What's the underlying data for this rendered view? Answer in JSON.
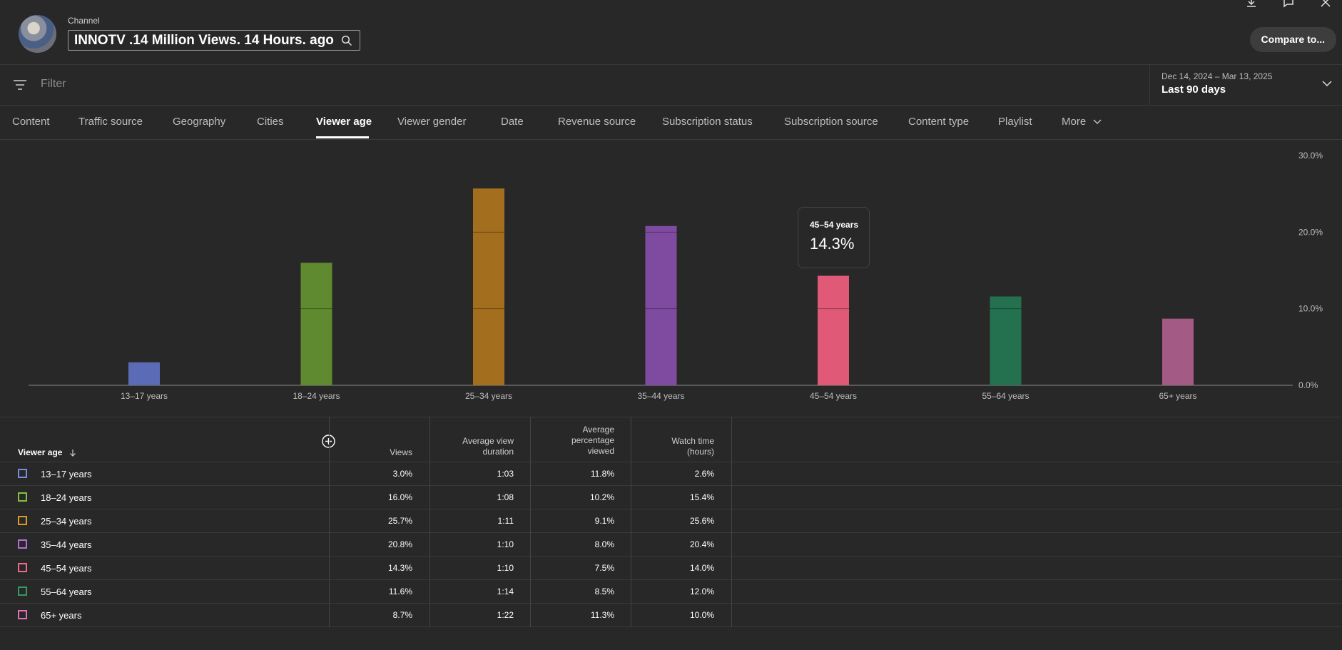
{
  "header": {
    "channel_label": "Channel",
    "title": "INNOTV .14 Million Views. 14 Hours. ago",
    "compare_label": "Compare to..."
  },
  "filter": {
    "placeholder": "Filter"
  },
  "date": {
    "range": "Dec 14, 2024 – Mar 13, 2025",
    "label": "Last 90 days"
  },
  "tabs": [
    {
      "label": "Content"
    },
    {
      "label": "Traffic source"
    },
    {
      "label": "Geography"
    },
    {
      "label": "Cities"
    },
    {
      "label": "Viewer age",
      "active": true
    },
    {
      "label": "Viewer gender"
    },
    {
      "label": "Date"
    },
    {
      "label": "Revenue source"
    },
    {
      "label": "Subscription status"
    },
    {
      "label": "Subscription source"
    },
    {
      "label": "Content type"
    },
    {
      "label": "Playlist"
    },
    {
      "label": "More"
    }
  ],
  "chart_data": {
    "type": "bar",
    "categories": [
      "13–17 years",
      "18–24 years",
      "25–34 years",
      "35–44 years",
      "45–54 years",
      "55–64 years",
      "65+ years"
    ],
    "values": [
      3.0,
      16.0,
      25.7,
      20.8,
      14.3,
      11.6,
      8.7
    ],
    "colors": [
      "#5c6bb5",
      "#5f8a2f",
      "#a36e1d",
      "#7e4ba0",
      "#e05a78",
      "#23714f",
      "#a35a84"
    ],
    "ylim": [
      0,
      30
    ],
    "yticks": [
      "0.0%",
      "10.0%",
      "20.0%",
      "30.0%"
    ],
    "grid": true,
    "tooltip": {
      "label": "45–54 years",
      "value": "14.3%"
    }
  },
  "table": {
    "headers": {
      "age": "Viewer age",
      "views": "Views",
      "avg_view_duration": [
        "Average view",
        "duration"
      ],
      "avg_pct_viewed": [
        "Average",
        "percentage",
        "viewed"
      ],
      "watch_time": [
        "Watch time",
        "(hours)"
      ]
    },
    "rows": [
      {
        "age": "13–17 years",
        "views": "3.0%",
        "duration": "1:03",
        "pct": "11.8%",
        "watch": "2.6%",
        "color": "#7b8be0"
      },
      {
        "age": "18–24 years",
        "views": "16.0%",
        "duration": "1:08",
        "pct": "10.2%",
        "watch": "15.4%",
        "color": "#86c043"
      },
      {
        "age": "25–34 years",
        "views": "25.7%",
        "duration": "1:11",
        "pct": "9.1%",
        "watch": "25.6%",
        "color": "#e09a2a"
      },
      {
        "age": "35–44 years",
        "views": "20.8%",
        "duration": "1:10",
        "pct": "8.0%",
        "watch": "20.4%",
        "color": "#b06fe0"
      },
      {
        "age": "45–54 years",
        "views": "14.3%",
        "duration": "1:10",
        "pct": "7.5%",
        "watch": "14.0%",
        "color": "#f06a88"
      },
      {
        "age": "55–64 years",
        "views": "11.6%",
        "duration": "1:14",
        "pct": "8.5%",
        "watch": "12.0%",
        "color": "#2f9a6a"
      },
      {
        "age": "65+ years",
        "views": "8.7%",
        "duration": "1:22",
        "pct": "11.3%",
        "watch": "10.0%",
        "color": "#e070b8"
      }
    ]
  }
}
